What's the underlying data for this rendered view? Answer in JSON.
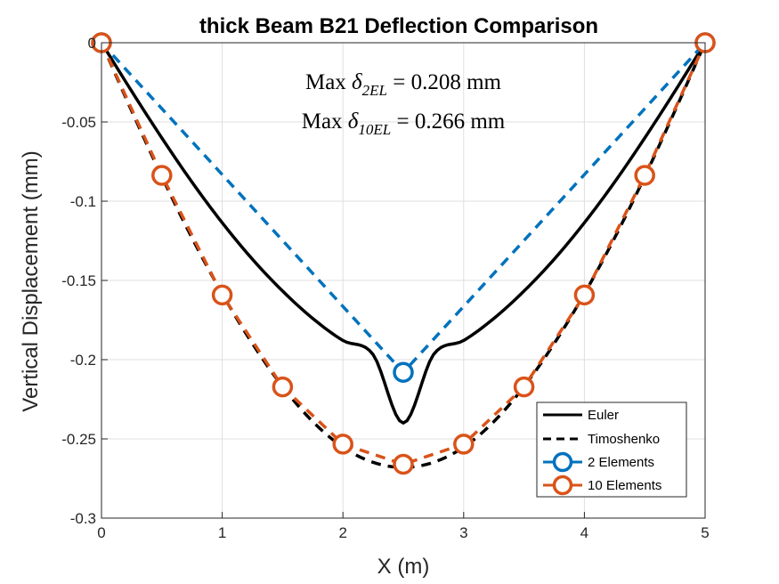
{
  "chart_data": {
    "type": "line",
    "title": "thick Beam B21 Deflection Comparison",
    "xlabel": "X (m)",
    "ylabel": "Vertical Displacement (mm)",
    "xlim": [
      0,
      5
    ],
    "ylim": [
      -0.3,
      0
    ],
    "xticks": [
      0,
      1,
      2,
      3,
      4,
      5
    ],
    "xtick_labels": [
      "0",
      "1",
      "2",
      "3",
      "4",
      "5"
    ],
    "yticks": [
      0,
      -0.05,
      -0.1,
      -0.15,
      -0.2,
      -0.25,
      -0.3
    ],
    "ytick_labels": [
      "0",
      "-0.05",
      "-0.1",
      "-0.15",
      "-0.2",
      "-0.25",
      "-0.3"
    ],
    "grid": true,
    "legend_position": "bottom-right",
    "annotations": [
      {
        "prefix": "Max",
        "symbol": "δ",
        "subscript": "2EL",
        "value": "= 0.208 mm"
      },
      {
        "prefix": "Max",
        "symbol": "δ",
        "subscript": "10EL",
        "value": "= 0.266 mm"
      }
    ],
    "series": [
      {
        "name": "Euler",
        "color": "#000000",
        "style": "solid",
        "marker": "none",
        "x": [
          0,
          0.25,
          0.5,
          0.75,
          1,
          1.25,
          1.5,
          1.75,
          2,
          2.25,
          2.5,
          2.75,
          3,
          3.25,
          3.5,
          3.75,
          4,
          4.25,
          4.5,
          4.75,
          5
        ],
        "y": [
          0,
          -0.0306,
          -0.0601,
          -0.088,
          -0.1136,
          -0.1366,
          -0.1567,
          -0.174,
          -0.1879,
          -0.1968,
          -0.24,
          -0.1968,
          -0.1879,
          -0.174,
          -0.1567,
          -0.1366,
          -0.1136,
          -0.088,
          -0.0601,
          -0.0306,
          0
        ]
      },
      {
        "name": "Timoshenko",
        "color": "#000000",
        "style": "dashed",
        "marker": "none",
        "x": [
          0,
          0.25,
          0.5,
          0.75,
          1,
          1.25,
          1.5,
          1.75,
          2,
          2.25,
          2.5,
          2.75,
          3,
          3.25,
          3.5,
          3.75,
          4,
          4.25,
          4.5,
          4.75,
          5
        ],
        "y": [
          0,
          -0.043,
          -0.0845,
          -0.1232,
          -0.1584,
          -0.1898,
          -0.217,
          -0.2391,
          -0.2552,
          -0.2648,
          -0.268,
          -0.2648,
          -0.2552,
          -0.2391,
          -0.217,
          -0.1898,
          -0.1584,
          -0.1232,
          -0.0845,
          -0.043,
          0
        ]
      },
      {
        "name": "2 Elements",
        "color": "#0072BD",
        "style": "dashed",
        "marker": "circle",
        "x": [
          0,
          2.5,
          5
        ],
        "y": [
          0,
          -0.208,
          0
        ]
      },
      {
        "name": "10 Elements",
        "color": "#D95319",
        "style": "dashed",
        "marker": "circle",
        "x": [
          0,
          0.5,
          1,
          1.5,
          2,
          2.5,
          3,
          3.5,
          4,
          4.5,
          5
        ],
        "y": [
          0,
          -0.0837,
          -0.1592,
          -0.2172,
          -0.2533,
          -0.266,
          -0.2533,
          -0.2172,
          -0.1592,
          -0.0837,
          0
        ]
      }
    ]
  }
}
